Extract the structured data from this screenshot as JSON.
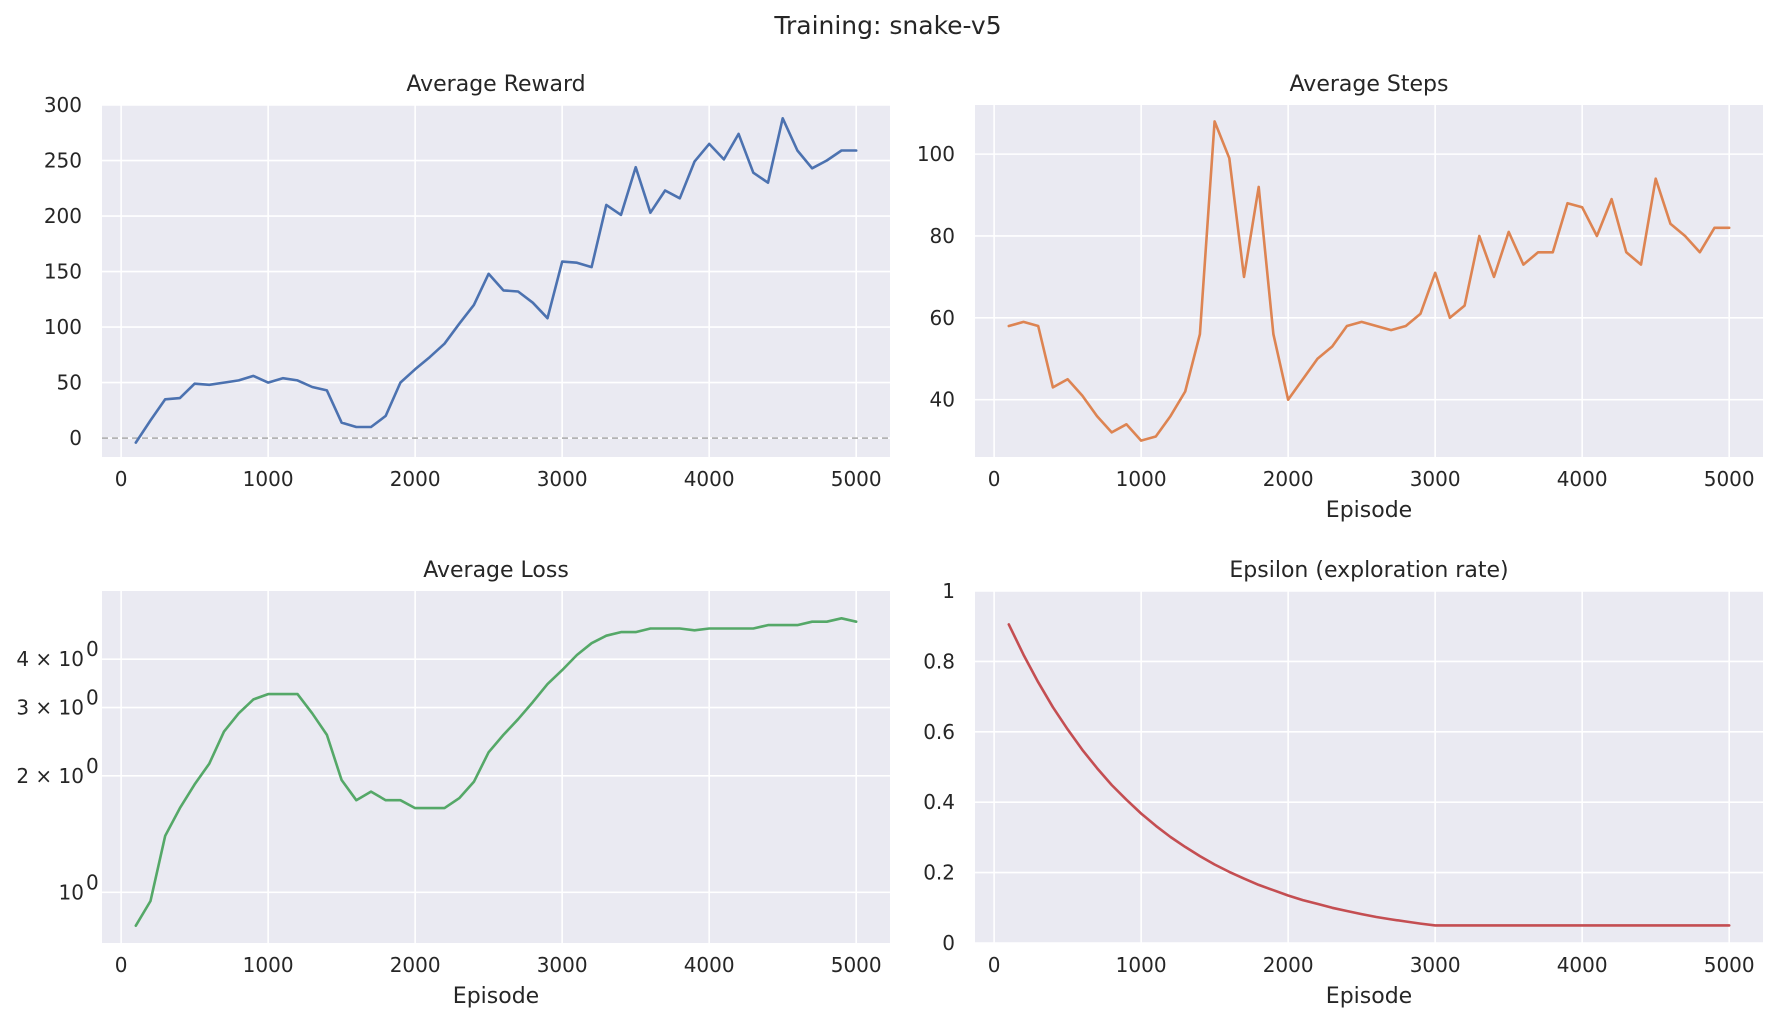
{
  "figure": {
    "title": "Training: snake-v5"
  },
  "chart_data": [
    {
      "type": "line",
      "title": "Average Reward",
      "xlabel": "",
      "ylabel": "",
      "xlim": [
        -130,
        5230
      ],
      "ylim": [
        -17,
        300
      ],
      "xticks": [
        0,
        1000,
        2000,
        3000,
        4000,
        5000
      ],
      "yticks": [
        0,
        50,
        100,
        150,
        200,
        250,
        300
      ],
      "grid": true,
      "hline": 0,
      "color": "#4c72b0",
      "x": [
        100,
        200,
        300,
        400,
        500,
        600,
        700,
        800,
        900,
        1000,
        1100,
        1200,
        1300,
        1400,
        1500,
        1600,
        1700,
        1800,
        1900,
        2000,
        2100,
        2200,
        2300,
        2400,
        2500,
        2600,
        2700,
        2800,
        2900,
        3000,
        3100,
        3200,
        3300,
        3400,
        3500,
        3600,
        3700,
        3800,
        3900,
        4000,
        4100,
        4200,
        4300,
        4400,
        4500,
        4600,
        4700,
        4800,
        4900,
        5000
      ],
      "y": [
        -4,
        16,
        35,
        36,
        49,
        48,
        50,
        52,
        56,
        50,
        54,
        52,
        46,
        43,
        14,
        10,
        10,
        20,
        50,
        62,
        73,
        85,
        103,
        120,
        148,
        133,
        132,
        122,
        108,
        159,
        158,
        154,
        210,
        201,
        244,
        203,
        223,
        216,
        249,
        265,
        251,
        274,
        239,
        230,
        288,
        259,
        243,
        250,
        259,
        259
      ]
    },
    {
      "type": "line",
      "title": "Average Steps",
      "xlabel": "Episode",
      "ylabel": "",
      "xlim": [
        -130,
        5230
      ],
      "ylim": [
        26,
        112
      ],
      "xticks": [
        0,
        1000,
        2000,
        3000,
        4000,
        5000
      ],
      "yticks": [
        40,
        60,
        80,
        100
      ],
      "grid": true,
      "color": "#dd8452",
      "x": [
        100,
        200,
        300,
        400,
        500,
        600,
        700,
        800,
        900,
        1000,
        1100,
        1200,
        1300,
        1400,
        1500,
        1600,
        1700,
        1800,
        1900,
        2000,
        2100,
        2200,
        2300,
        2400,
        2500,
        2600,
        2700,
        2800,
        2900,
        3000,
        3100,
        3200,
        3300,
        3400,
        3500,
        3600,
        3700,
        3800,
        3900,
        4000,
        4100,
        4200,
        4300,
        4400,
        4500,
        4600,
        4700,
        4800,
        4900,
        5000
      ],
      "y": [
        58,
        59,
        58,
        43,
        45,
        41,
        36,
        32,
        34,
        30,
        31,
        36,
        42,
        56,
        108,
        99,
        70,
        92,
        56,
        40,
        45,
        50,
        53,
        58,
        59,
        58,
        57,
        58,
        61,
        71,
        60,
        63,
        80,
        70,
        81,
        73,
        76,
        76,
        88,
        87,
        80,
        89,
        76,
        73,
        94,
        83,
        80,
        76,
        82,
        82
      ]
    },
    {
      "type": "line",
      "title": "Average Loss",
      "xlabel": "Episode",
      "ylabel": "",
      "xlim": [
        -130,
        5230
      ],
      "ylim": [
        0.74,
        6.0
      ],
      "yscale": "log",
      "xticks": [
        0,
        1000,
        2000,
        3000,
        4000,
        5000
      ],
      "yticks": [
        1,
        2,
        3,
        4
      ],
      "ytick_labels": [
        "10",
        "2 × 10",
        "3 × 10",
        "4 × 10"
      ],
      "ytick_exp": "0",
      "grid": true,
      "color": "#55a868",
      "x": [
        100,
        200,
        300,
        400,
        500,
        600,
        700,
        800,
        900,
        1000,
        1100,
        1200,
        1300,
        1400,
        1500,
        1600,
        1700,
        1800,
        1900,
        2000,
        2100,
        2200,
        2300,
        2400,
        2500,
        2600,
        2700,
        2800,
        2900,
        3000,
        3100,
        3200,
        3300,
        3400,
        3500,
        3600,
        3700,
        3800,
        3900,
        4000,
        4100,
        4200,
        4300,
        4400,
        4500,
        4600,
        4700,
        4800,
        4900,
        5000
      ],
      "y": [
        0.82,
        0.95,
        1.4,
        1.65,
        1.9,
        2.15,
        2.6,
        2.9,
        3.15,
        3.25,
        3.25,
        3.25,
        2.9,
        2.55,
        1.95,
        1.73,
        1.82,
        1.73,
        1.73,
        1.65,
        1.65,
        1.65,
        1.75,
        1.93,
        2.3,
        2.55,
        2.8,
        3.1,
        3.45,
        3.75,
        4.1,
        4.4,
        4.6,
        4.7,
        4.7,
        4.8,
        4.8,
        4.8,
        4.75,
        4.8,
        4.8,
        4.8,
        4.8,
        4.9,
        4.9,
        4.9,
        5.0,
        5.0,
        5.1,
        5.0
      ]
    },
    {
      "type": "line",
      "title": "Epsilon (exploration rate)",
      "xlabel": "Episode",
      "ylabel": "",
      "xlim": [
        -130,
        5230
      ],
      "ylim": [
        0.0,
        1.0
      ],
      "xticks": [
        0,
        1000,
        2000,
        3000,
        4000,
        5000
      ],
      "yticks": [
        0.0,
        0.2,
        0.4,
        0.6,
        0.8,
        1.0
      ],
      "grid": true,
      "color": "#c44e52",
      "x": [
        100,
        200,
        300,
        400,
        500,
        600,
        700,
        800,
        900,
        1000,
        1100,
        1200,
        1300,
        1400,
        1500,
        1600,
        1700,
        1800,
        1900,
        2000,
        2100,
        2200,
        2300,
        2400,
        2500,
        2600,
        2700,
        2800,
        2900,
        3000,
        3100,
        3200,
        3300,
        3400,
        3500,
        3600,
        3700,
        3800,
        3900,
        4000,
        4100,
        4200,
        4300,
        4400,
        4500,
        4600,
        4700,
        4800,
        4900,
        5000
      ],
      "y": [
        0.905,
        0.819,
        0.741,
        0.67,
        0.607,
        0.549,
        0.497,
        0.449,
        0.407,
        0.368,
        0.333,
        0.301,
        0.273,
        0.247,
        0.223,
        0.202,
        0.183,
        0.165,
        0.15,
        0.135,
        0.122,
        0.111,
        0.1,
        0.091,
        0.082,
        0.074,
        0.067,
        0.061,
        0.055,
        0.05,
        0.05,
        0.05,
        0.05,
        0.05,
        0.05,
        0.05,
        0.05,
        0.05,
        0.05,
        0.05,
        0.05,
        0.05,
        0.05,
        0.05,
        0.05,
        0.05,
        0.05,
        0.05,
        0.05,
        0.05
      ]
    }
  ]
}
